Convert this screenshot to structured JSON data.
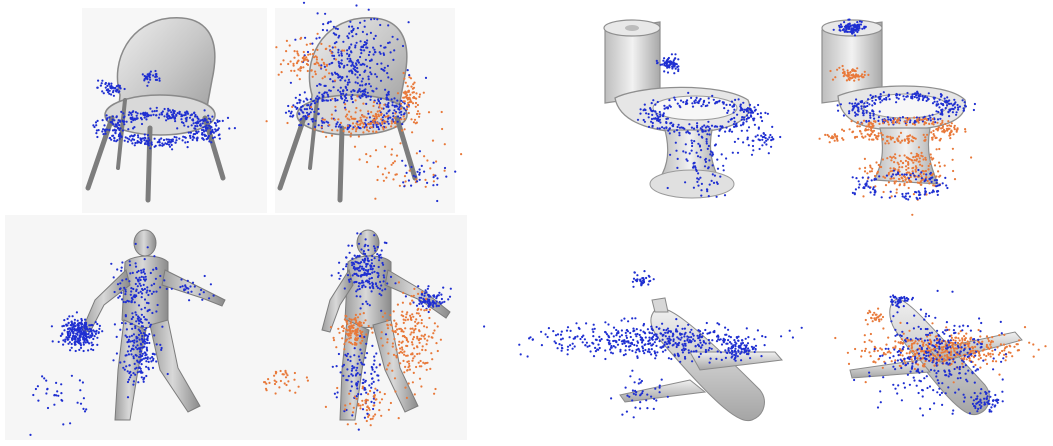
{
  "figure": {
    "panels": [
      {
        "name": "chair",
        "views": [
          "blue-only",
          "blue-and-orange"
        ]
      },
      {
        "name": "toilet",
        "views": [
          "blue-only",
          "blue-and-orange"
        ]
      },
      {
        "name": "person",
        "views": [
          "blue-only",
          "blue-and-orange"
        ]
      },
      {
        "name": "airplane",
        "views": [
          "blue-only",
          "blue-and-orange"
        ]
      }
    ]
  },
  "colors": {
    "background": "#ffffff",
    "mesh_fill": "#c9c9c9",
    "mesh_dark": "#8e8e8e",
    "mesh_light": "#ececec",
    "points_blue": "#1f2fd1",
    "points_orange": "#e8793a"
  }
}
